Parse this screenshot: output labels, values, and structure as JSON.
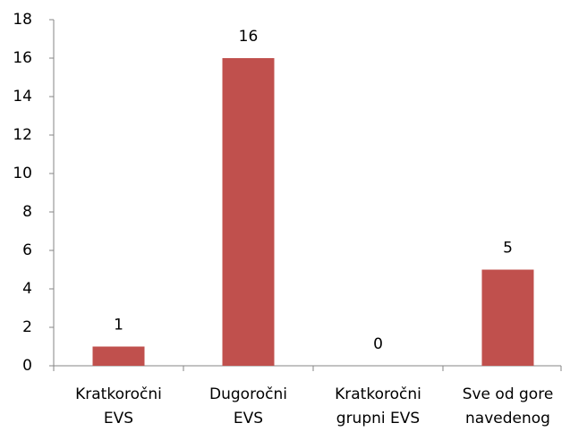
{
  "chart_data": {
    "type": "bar",
    "categories": [
      [
        "Kratkoročni",
        "EVS"
      ],
      [
        "Dugoročni",
        "EVS"
      ],
      [
        "Kratkoročni",
        "grupni EVS"
      ],
      [
        "Sve od gore",
        "navedenog"
      ]
    ],
    "values": [
      1,
      16,
      0,
      5
    ],
    "color": "#c0504d",
    "ylim": [
      0,
      18
    ],
    "yticks": [
      0,
      2,
      4,
      6,
      8,
      10,
      12,
      14,
      16,
      18
    ],
    "grid": false,
    "data_labels": true
  }
}
